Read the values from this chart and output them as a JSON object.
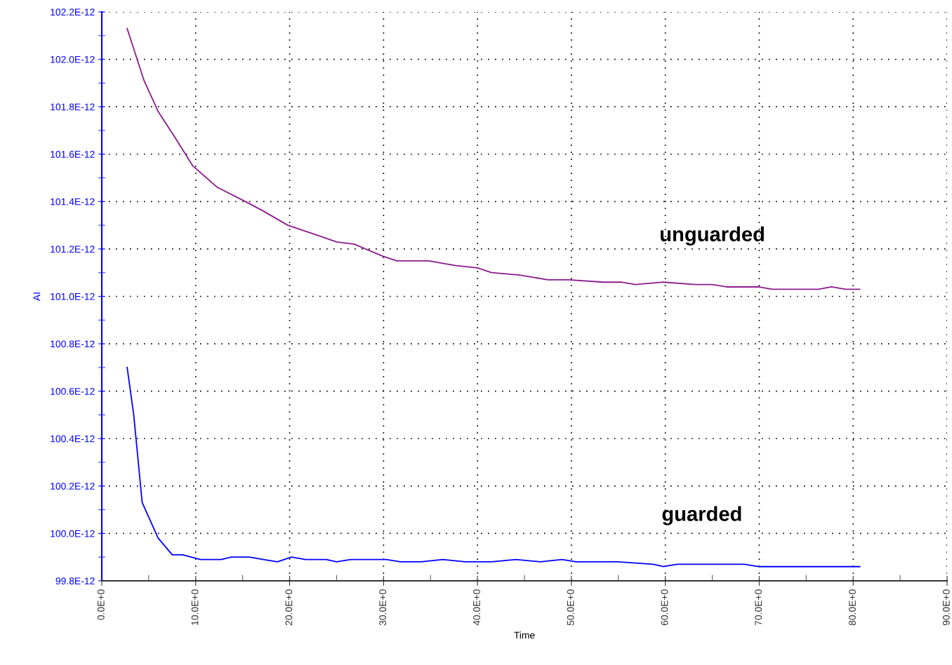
{
  "chart_data": {
    "type": "line",
    "xlabel": "Time",
    "ylabel": "AI",
    "xlim": [
      0,
      90
    ],
    "ylim": [
      9.98e-11,
      1.022e-10
    ],
    "xticks": [
      {
        "value": 0,
        "label": "0.0E+0"
      },
      {
        "value": 5,
        "label": null
      },
      {
        "value": 10,
        "label": "10.0E+0"
      },
      {
        "value": 15,
        "label": null
      },
      {
        "value": 20,
        "label": "20.0E+0"
      },
      {
        "value": 25,
        "label": null
      },
      {
        "value": 30,
        "label": "30.0E+0"
      },
      {
        "value": 35,
        "label": null
      },
      {
        "value": 40,
        "label": "40.0E+0"
      },
      {
        "value": 45,
        "label": null
      },
      {
        "value": 50,
        "label": "50.0E+0"
      },
      {
        "value": 55,
        "label": null
      },
      {
        "value": 60,
        "label": "60.0E+0"
      },
      {
        "value": 65,
        "label": null
      },
      {
        "value": 70,
        "label": "70.0E+0"
      },
      {
        "value": 75,
        "label": null
      },
      {
        "value": 80,
        "label": "80.0E+0"
      },
      {
        "value": 85,
        "label": null
      },
      {
        "value": 90,
        "label": "90.0E+0"
      }
    ],
    "yticks": [
      {
        "value": 9.98e-11,
        "label": "99.8E-12"
      },
      {
        "value": 9.99e-11,
        "label": null
      },
      {
        "value": 1e-10,
        "label": "100.0E-12"
      },
      {
        "value": 1.001e-10,
        "label": null
      },
      {
        "value": 1.002e-10,
        "label": "100.2E-12"
      },
      {
        "value": 1.003e-10,
        "label": null
      },
      {
        "value": 1.004e-10,
        "label": "100.4E-12"
      },
      {
        "value": 1.005e-10,
        "label": null
      },
      {
        "value": 1.006e-10,
        "label": "100.6E-12"
      },
      {
        "value": 1.007e-10,
        "label": null
      },
      {
        "value": 1.008e-10,
        "label": "100.8E-12"
      },
      {
        "value": 1.009e-10,
        "label": null
      },
      {
        "value": 1.01e-10,
        "label": "101.0E-12"
      },
      {
        "value": 1.011e-10,
        "label": null
      },
      {
        "value": 1.012e-10,
        "label": "101.2E-12"
      },
      {
        "value": 1.013e-10,
        "label": null
      },
      {
        "value": 1.014e-10,
        "label": "101.4E-12"
      },
      {
        "value": 1.015e-10,
        "label": null
      },
      {
        "value": 1.016e-10,
        "label": "101.6E-12"
      },
      {
        "value": 1.017e-10,
        "label": null
      },
      {
        "value": 1.018e-10,
        "label": "101.8E-12"
      },
      {
        "value": 1.019e-10,
        "label": null
      },
      {
        "value": 1.02e-10,
        "label": "102.0E-12"
      },
      {
        "value": 1.021e-10,
        "label": null
      },
      {
        "value": 1.022e-10,
        "label": "102.2E-12"
      }
    ],
    "grid": true,
    "legend": false,
    "marker": "none",
    "line_style": "solid",
    "series": [
      {
        "name": "unguarded",
        "color": "#8b1a8b",
        "x": [
          2.7,
          4.5,
          6.0,
          7.8,
          9.7,
          12.3,
          15.3,
          17.2,
          19.8,
          22.8,
          25.0,
          26.9,
          29.9,
          31.4,
          34.8,
          37.7,
          40.0,
          41.5,
          44.5,
          47.5,
          49.7,
          53.4,
          55.3,
          56.8,
          59.8,
          63.2,
          65.0,
          66.5,
          69.9,
          71.4,
          74.7,
          76.3,
          77.7,
          79.2,
          80.7
        ],
        "values": [
          1.0213e-10,
          1.0191e-10,
          1.0178e-10,
          1.0167e-10,
          1.0155e-10,
          1.0146e-10,
          1.014e-10,
          1.0136e-10,
          1.013e-10,
          1.0126e-10,
          1.0123e-10,
          1.0122e-10,
          1.0117e-10,
          1.0115e-10,
          1.0115e-10,
          1.0113e-10,
          1.0112e-10,
          1.011e-10,
          1.0109e-10,
          1.0107e-10,
          1.0107e-10,
          1.0106e-10,
          1.0106e-10,
          1.0105e-10,
          1.0106e-10,
          1.0105e-10,
          1.0105e-10,
          1.0104e-10,
          1.0104e-10,
          1.0103e-10,
          1.0103e-10,
          1.0103e-10,
          1.0104e-10,
          1.0103e-10,
          1.0103e-10
        ]
      },
      {
        "name": "guarded",
        "color": "#0000ff",
        "x": [
          2.7,
          3.4,
          4.3,
          6.0,
          7.5,
          8.6,
          10.5,
          12.7,
          13.8,
          15.7,
          17.2,
          18.7,
          20.2,
          21.7,
          23.9,
          25.0,
          26.5,
          28.8,
          30.3,
          31.8,
          34.0,
          36.3,
          38.7,
          40.0,
          41.5,
          44.1,
          46.7,
          49.0,
          50.5,
          52.0,
          54.9,
          58.7,
          59.8,
          61.3,
          63.9,
          65.8,
          68.4,
          69.9,
          72.1,
          74.4,
          78.9,
          80.0,
          80.7
        ],
        "values": [
          1.007e-10,
          1.005e-10,
          1.0013e-10,
          9.998e-11,
          9.991e-11,
          9.991e-11,
          9.989e-11,
          9.989e-11,
          9.99e-11,
          9.99e-11,
          9.989e-11,
          9.988e-11,
          9.99e-11,
          9.989e-11,
          9.989e-11,
          9.988e-11,
          9.989e-11,
          9.989e-11,
          9.989e-11,
          9.988e-11,
          9.988e-11,
          9.989e-11,
          9.988e-11,
          9.988e-11,
          9.988e-11,
          9.989e-11,
          9.988e-11,
          9.989e-11,
          9.988e-11,
          9.988e-11,
          9.988e-11,
          9.987e-11,
          9.986e-11,
          9.987e-11,
          9.987e-11,
          9.987e-11,
          9.987e-11,
          9.986e-11,
          9.986e-11,
          9.986e-11,
          9.986e-11,
          9.986e-11,
          9.986e-11
        ]
      }
    ]
  }
}
